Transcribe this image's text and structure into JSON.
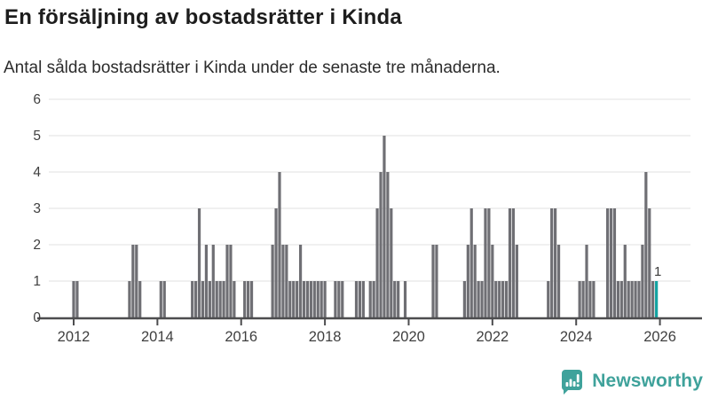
{
  "title": "En försäljning av bostadsrätter i Kinda",
  "subtitle": "Antal sålda bostadsrätter i Kinda under de senaste tre månaderna.",
  "brand": {
    "name": "Newsworthy",
    "icon": "newsworthy-bubble-chart-icon",
    "color": "#3fa29b"
  },
  "chart_data": {
    "type": "bar",
    "title": "En försäljning av bostadsrätter i Kinda",
    "subtitle": "Antal sålda bostadsrätter i Kinda under de senaste tre månaderna.",
    "xlabel": "",
    "ylabel": "",
    "ylim": [
      0,
      6
    ],
    "yticks": [
      0,
      1,
      2,
      3,
      4,
      5,
      6
    ],
    "xticks": [
      "2012",
      "2014",
      "2016",
      "2018",
      "2020",
      "2022",
      "2024",
      "2026"
    ],
    "x_domain": [
      "2011-06",
      "2026-02"
    ],
    "grid": true,
    "legend": false,
    "bar_color": "#6f6f74",
    "highlight_color": "#12a3a1",
    "grid_color": "#e6e6e6",
    "axis_color": "#4d4d4f",
    "label_color": "#3f3f3f",
    "annotation_color": "#3c3c3c",
    "highlight_label": "1",
    "series": [
      {
        "m": "2012-01",
        "v": 1
      },
      {
        "m": "2012-02",
        "v": 1
      },
      {
        "m": "2013-05",
        "v": 1
      },
      {
        "m": "2013-06",
        "v": 2
      },
      {
        "m": "2013-07",
        "v": 2
      },
      {
        "m": "2013-08",
        "v": 1
      },
      {
        "m": "2014-02",
        "v": 1
      },
      {
        "m": "2014-03",
        "v": 1
      },
      {
        "m": "2014-11",
        "v": 1
      },
      {
        "m": "2014-12",
        "v": 1
      },
      {
        "m": "2015-01",
        "v": 3
      },
      {
        "m": "2015-02",
        "v": 1
      },
      {
        "m": "2015-03",
        "v": 2
      },
      {
        "m": "2015-04",
        "v": 1
      },
      {
        "m": "2015-05",
        "v": 2
      },
      {
        "m": "2015-06",
        "v": 1
      },
      {
        "m": "2015-07",
        "v": 1
      },
      {
        "m": "2015-08",
        "v": 1
      },
      {
        "m": "2015-09",
        "v": 2
      },
      {
        "m": "2015-10",
        "v": 2
      },
      {
        "m": "2015-11",
        "v": 1
      },
      {
        "m": "2016-02",
        "v": 1
      },
      {
        "m": "2016-03",
        "v": 1
      },
      {
        "m": "2016-04",
        "v": 1
      },
      {
        "m": "2016-10",
        "v": 2
      },
      {
        "m": "2016-11",
        "v": 3
      },
      {
        "m": "2016-12",
        "v": 4
      },
      {
        "m": "2017-01",
        "v": 2
      },
      {
        "m": "2017-02",
        "v": 2
      },
      {
        "m": "2017-03",
        "v": 1
      },
      {
        "m": "2017-04",
        "v": 1
      },
      {
        "m": "2017-05",
        "v": 1
      },
      {
        "m": "2017-06",
        "v": 2
      },
      {
        "m": "2017-07",
        "v": 1
      },
      {
        "m": "2017-08",
        "v": 1
      },
      {
        "m": "2017-09",
        "v": 1
      },
      {
        "m": "2017-10",
        "v": 1
      },
      {
        "m": "2017-11",
        "v": 1
      },
      {
        "m": "2017-12",
        "v": 1
      },
      {
        "m": "2018-01",
        "v": 1
      },
      {
        "m": "2018-04",
        "v": 1
      },
      {
        "m": "2018-05",
        "v": 1
      },
      {
        "m": "2018-06",
        "v": 1
      },
      {
        "m": "2018-10",
        "v": 1
      },
      {
        "m": "2018-11",
        "v": 1
      },
      {
        "m": "2018-12",
        "v": 1
      },
      {
        "m": "2019-02",
        "v": 1
      },
      {
        "m": "2019-03",
        "v": 1
      },
      {
        "m": "2019-04",
        "v": 3
      },
      {
        "m": "2019-05",
        "v": 4
      },
      {
        "m": "2019-06",
        "v": 5
      },
      {
        "m": "2019-07",
        "v": 4
      },
      {
        "m": "2019-08",
        "v": 3
      },
      {
        "m": "2019-09",
        "v": 1
      },
      {
        "m": "2019-10",
        "v": 1
      },
      {
        "m": "2019-12",
        "v": 1
      },
      {
        "m": "2020-08",
        "v": 2
      },
      {
        "m": "2020-09",
        "v": 2
      },
      {
        "m": "2021-05",
        "v": 1
      },
      {
        "m": "2021-06",
        "v": 2
      },
      {
        "m": "2021-07",
        "v": 3
      },
      {
        "m": "2021-08",
        "v": 2
      },
      {
        "m": "2021-09",
        "v": 1
      },
      {
        "m": "2021-10",
        "v": 1
      },
      {
        "m": "2021-11",
        "v": 3
      },
      {
        "m": "2021-12",
        "v": 3
      },
      {
        "m": "2022-01",
        "v": 2
      },
      {
        "m": "2022-02",
        "v": 1
      },
      {
        "m": "2022-03",
        "v": 1
      },
      {
        "m": "2022-04",
        "v": 1
      },
      {
        "m": "2022-05",
        "v": 1
      },
      {
        "m": "2022-06",
        "v": 3
      },
      {
        "m": "2022-07",
        "v": 3
      },
      {
        "m": "2022-08",
        "v": 2
      },
      {
        "m": "2023-05",
        "v": 1
      },
      {
        "m": "2023-06",
        "v": 3
      },
      {
        "m": "2023-07",
        "v": 3
      },
      {
        "m": "2023-08",
        "v": 2
      },
      {
        "m": "2024-02",
        "v": 1
      },
      {
        "m": "2024-03",
        "v": 1
      },
      {
        "m": "2024-04",
        "v": 2
      },
      {
        "m": "2024-05",
        "v": 1
      },
      {
        "m": "2024-06",
        "v": 1
      },
      {
        "m": "2024-10",
        "v": 3
      },
      {
        "m": "2024-11",
        "v": 3
      },
      {
        "m": "2024-12",
        "v": 3
      },
      {
        "m": "2025-01",
        "v": 1
      },
      {
        "m": "2025-02",
        "v": 1
      },
      {
        "m": "2025-03",
        "v": 2
      },
      {
        "m": "2025-04",
        "v": 1
      },
      {
        "m": "2025-05",
        "v": 1
      },
      {
        "m": "2025-06",
        "v": 1
      },
      {
        "m": "2025-07",
        "v": 1
      },
      {
        "m": "2025-08",
        "v": 2
      },
      {
        "m": "2025-09",
        "v": 4
      },
      {
        "m": "2025-10",
        "v": 3
      },
      {
        "m": "2025-11",
        "v": 1
      },
      {
        "m": "2025-12",
        "v": 1,
        "highlight": true
      }
    ]
  }
}
